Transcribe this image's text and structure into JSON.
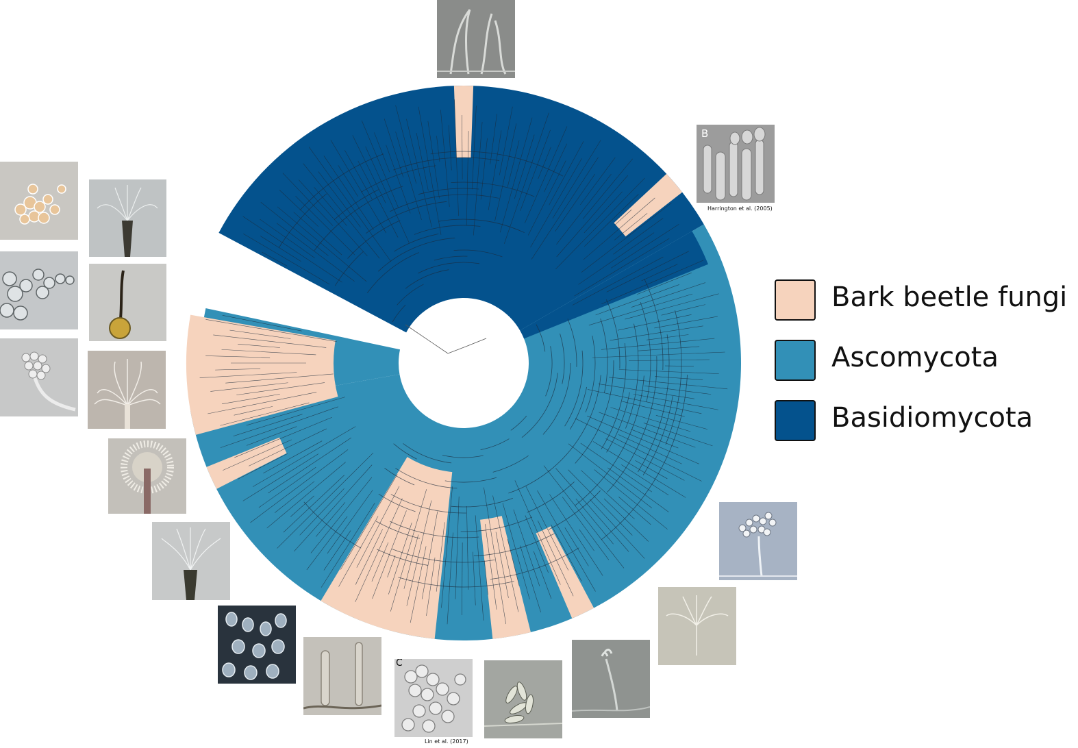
{
  "legend": {
    "items": [
      {
        "label": "Bark beetle fungi",
        "color": "#f6d3bd"
      },
      {
        "label": "Ascomycota",
        "color": "#3290b7"
      },
      {
        "label": "Basidiomycota",
        "color": "#04528d"
      }
    ]
  },
  "credits": {
    "harrington": "Harrington et al. (2005)",
    "lin": "Lin et al. (2017)"
  },
  "photo_panel_letters": {
    "harrington_panel": "B",
    "lin_panel": "C"
  },
  "tree": {
    "layout": "circular phylogenetic tree",
    "clade_colors": {
      "bark_beetle": "#f6d3bd",
      "ascomycota": "#3290b7",
      "basidiomycota": "#04528d",
      "branch_line": "#1b2a3a"
    },
    "signature_mark": "handwritten signature near tree center"
  },
  "photos": [
    {
      "id": "top",
      "subject": "hyphae micrograph"
    },
    {
      "id": "harrington",
      "subject": "conidia on conidiophores micrograph"
    },
    {
      "id": "left-1",
      "subject": "yeast-like cells cluster"
    },
    {
      "id": "left-2",
      "subject": "budding cells chain"
    },
    {
      "id": "left-3",
      "subject": "conidia head on stalk"
    },
    {
      "id": "left-4",
      "subject": "synnema brush"
    },
    {
      "id": "left-5",
      "subject": "perithecium with neck"
    },
    {
      "id": "left-6",
      "subject": "branched conidiophore brush"
    },
    {
      "id": "left-7",
      "subject": "synnema fan"
    },
    {
      "id": "left-8",
      "subject": "synnema tuft"
    },
    {
      "id": "bottom-1",
      "subject": "cells dark field"
    },
    {
      "id": "bottom-2",
      "subject": "tubular conidiophores"
    },
    {
      "id": "lin",
      "subject": "globose cells"
    },
    {
      "id": "bottom-4",
      "subject": "ascospores cluster"
    },
    {
      "id": "bottom-5",
      "subject": "single conidiophore"
    },
    {
      "id": "right-1",
      "subject": "conidial head on stalk"
    },
    {
      "id": "right-2",
      "subject": "branched conidiophore"
    }
  ]
}
